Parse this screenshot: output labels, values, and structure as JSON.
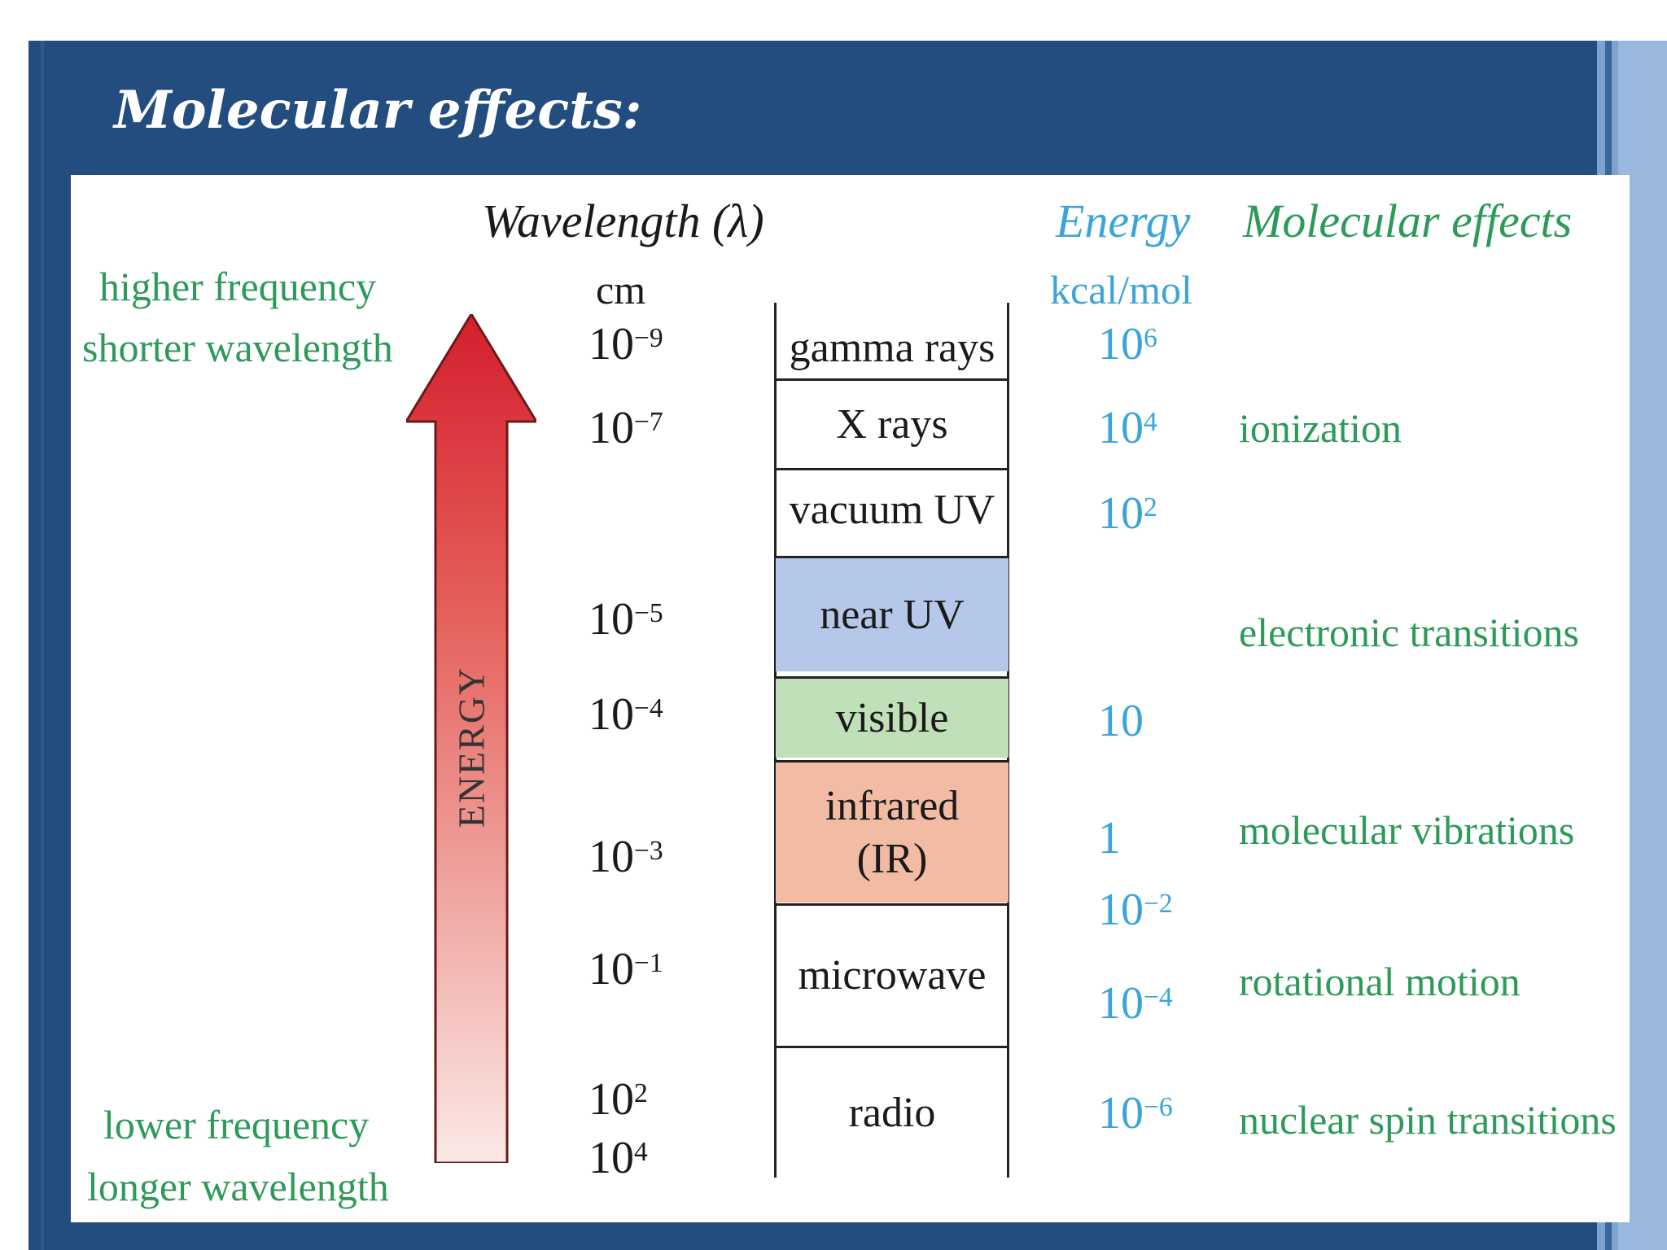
{
  "title": "Molecular effects:",
  "headers": {
    "wavelength": "Wavelength (λ)",
    "wavelength_unit": "cm",
    "energy": "Energy",
    "energy_unit": "kcal/mol",
    "effects": "Molecular effects"
  },
  "side_labels": {
    "top_line1": "higher frequency",
    "top_line2": "shorter wavelength",
    "bottom_line1": "lower frequency",
    "bottom_line2": "longer wavelength"
  },
  "arrow_label": "ENERGY",
  "colors": {
    "slide_background": "#244d7f",
    "arrow_top": "#d41f2d",
    "arrow_bottom": "#fbe9e6",
    "near_uv": "#b6c8ea",
    "visible": "#bfe0b9",
    "infrared": "#f2bba3"
  },
  "wavelengths": [
    {
      "base": "10",
      "exp": "−9"
    },
    {
      "base": "10",
      "exp": "−7"
    },
    {
      "base": "10",
      "exp": "−5"
    },
    {
      "base": "10",
      "exp": "−4"
    },
    {
      "base": "10",
      "exp": "−3"
    },
    {
      "base": "10",
      "exp": "−1"
    },
    {
      "base": "10",
      "exp": "2"
    },
    {
      "base": "10",
      "exp": "4"
    }
  ],
  "bands": [
    {
      "label": "gamma rays"
    },
    {
      "label": "X rays"
    },
    {
      "label": "vacuum UV"
    },
    {
      "label": "near UV"
    },
    {
      "label": "visible"
    },
    {
      "label": "infrared",
      "label2": "(IR)"
    },
    {
      "label": "microwave"
    },
    {
      "label": "radio"
    }
  ],
  "energies": [
    {
      "base": "10",
      "exp": "6"
    },
    {
      "base": "10",
      "exp": "4"
    },
    {
      "base": "10",
      "exp": "2"
    },
    {
      "base": "10",
      "exp": ""
    },
    {
      "base": "1",
      "exp": ""
    },
    {
      "base": "10",
      "exp": "−2"
    },
    {
      "base": "10",
      "exp": "−4"
    },
    {
      "base": "10",
      "exp": "−6"
    }
  ],
  "effects": [
    "ionization",
    "electronic transitions",
    "molecular vibrations",
    "rotational motion",
    "nuclear spin transitions"
  ]
}
